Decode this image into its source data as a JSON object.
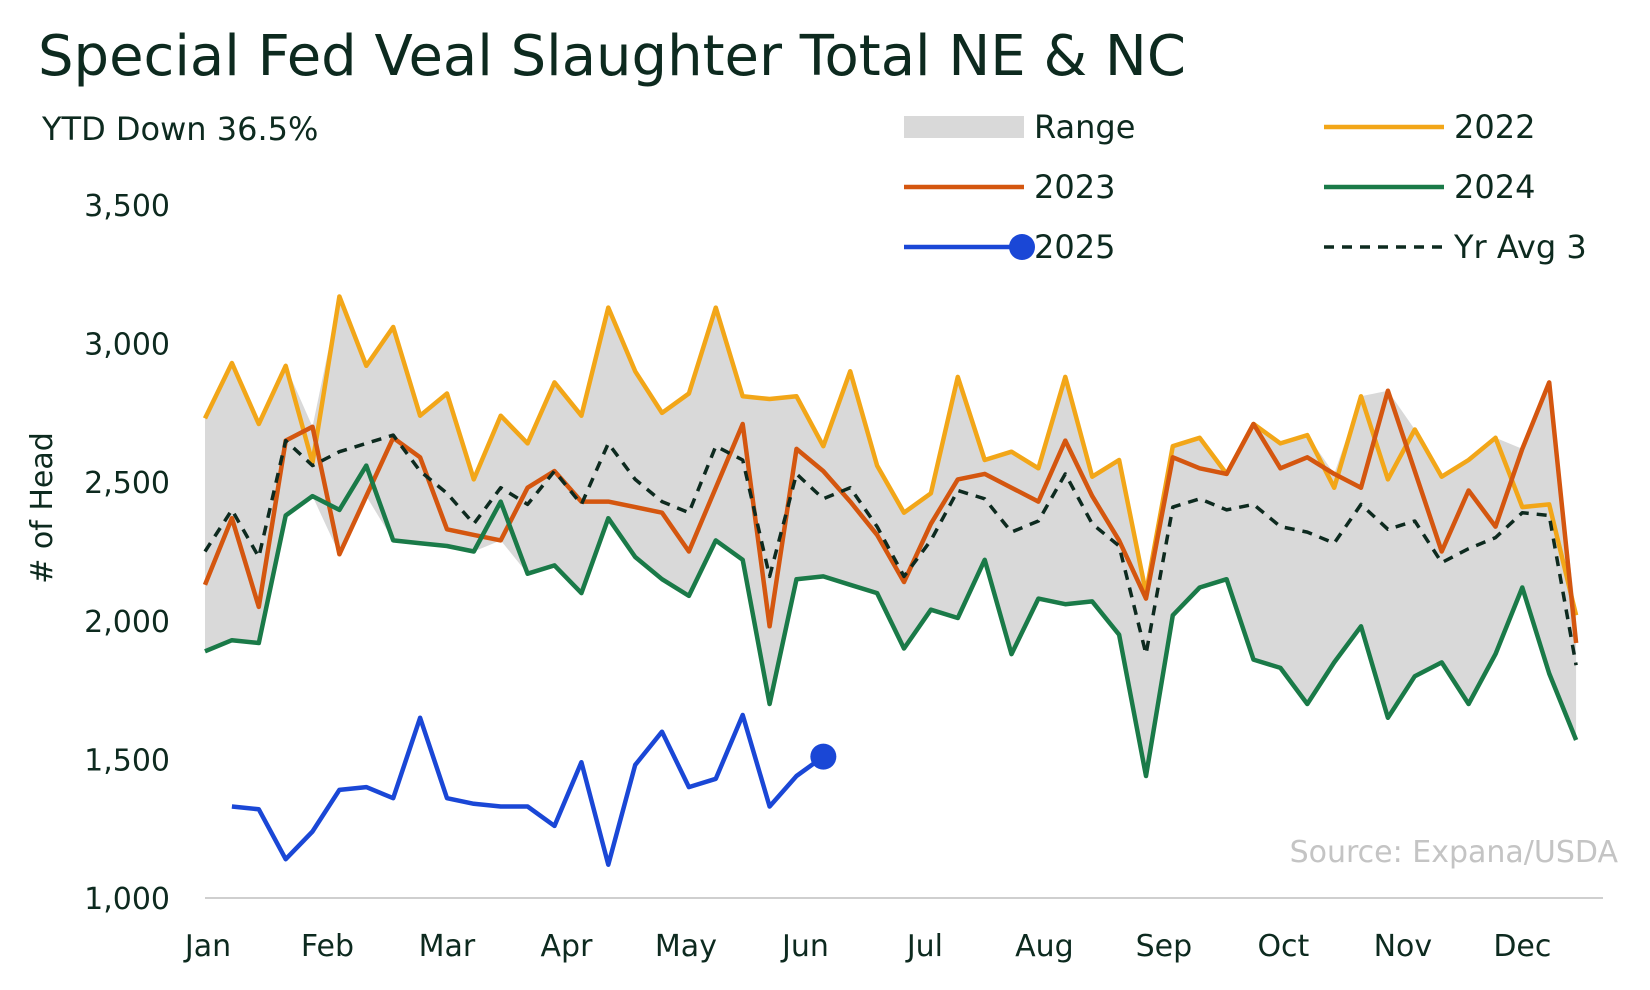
{
  "chart_data": {
    "type": "line",
    "title": "Special Fed Veal Slaughter Total NE & NC",
    "subtitle": "YTD Down 36.5%",
    "ylabel": "# of Head",
    "xlabel": "",
    "source": "Source: Expana/USDA",
    "ylim": [
      1000,
      3500
    ],
    "yticks": [
      1000,
      1500,
      2000,
      2500,
      3000,
      3500
    ],
    "ytick_labels": [
      "1,000",
      "1,500",
      "2,000",
      "2,500",
      "3,000",
      "3,500"
    ],
    "x_week_range": [
      1,
      53
    ],
    "month_labels": [
      "Jan",
      "Feb",
      "Mar",
      "Apr",
      "May",
      "Jun",
      "Jul",
      "Aug",
      "Sep",
      "Oct",
      "Nov",
      "Dec"
    ],
    "grid": false,
    "legend_position": "top-right",
    "colors": {
      "range": "#d9d9d9",
      "2022": "#f2a618",
      "2023": "#d4560f",
      "2024": "#1a7a48",
      "2025": "#1a47d6",
      "avg": "#0d2a1f"
    },
    "legend": [
      {
        "key": "range",
        "label": "Range",
        "style": "band"
      },
      {
        "key": "2022",
        "label": "2022",
        "style": "line"
      },
      {
        "key": "2023",
        "label": "2023",
        "style": "line"
      },
      {
        "key": "2024",
        "label": "2024",
        "style": "line"
      },
      {
        "key": "2025",
        "label": "2025",
        "style": "line-marker"
      },
      {
        "key": "avg",
        "label": "Yr Avg 3",
        "style": "dashed"
      }
    ],
    "series": [
      {
        "name": "2022",
        "key": "2022",
        "start_week": 1,
        "values": [
          2730,
          2930,
          2710,
          2920,
          2570,
          3170,
          2920,
          3060,
          2740,
          2820,
          2510,
          2740,
          2640,
          2860,
          2740,
          3130,
          2900,
          2750,
          2820,
          3130,
          2810,
          2800,
          2810,
          2630,
          2900,
          2560,
          2390,
          2460,
          2880,
          2580,
          2610,
          2550,
          2880,
          2520,
          2580,
          2100,
          2630,
          2660,
          2530,
          2710,
          2640,
          2670,
          2480,
          2810,
          2510,
          2690,
          2520,
          2580,
          2660,
          2410,
          2420,
          2020
        ]
      },
      {
        "name": "2023",
        "key": "2023",
        "start_week": 1,
        "values": [
          2130,
          2370,
          2050,
          2650,
          2700,
          2240,
          2450,
          2660,
          2590,
          2330,
          2310,
          2290,
          2480,
          2540,
          2430,
          2430,
          2410,
          2390,
          2250,
          2480,
          2710,
          1980,
          2620,
          2540,
          2430,
          2310,
          2140,
          2350,
          2510,
          2530,
          2480,
          2430,
          2650,
          2450,
          2290,
          2080,
          2590,
          2550,
          2530,
          2710,
          2550,
          2590,
          2530,
          2480,
          2830,
          2540,
          2250,
          2470,
          2340,
          2620,
          2860,
          1920
        ]
      },
      {
        "name": "2024",
        "key": "2024",
        "start_week": 1,
        "values": [
          1890,
          1930,
          1920,
          2380,
          2450,
          2400,
          2560,
          2290,
          2280,
          2270,
          2250,
          2430,
          2170,
          2200,
          2100,
          2370,
          2230,
          2150,
          2090,
          2290,
          2220,
          1700,
          2150,
          2160,
          2130,
          2100,
          1900,
          2040,
          2010,
          2220,
          1880,
          2080,
          2060,
          2070,
          1950,
          1440,
          2020,
          2120,
          2150,
          1860,
          1830,
          1700,
          1850,
          1980,
          1650,
          1800,
          1850,
          1700,
          1880,
          2120,
          1810,
          1570
        ]
      },
      {
        "name": "Yr Avg 3",
        "key": "avg",
        "start_week": 1,
        "dashed": true,
        "values": [
          2250,
          2400,
          2230,
          2650,
          2560,
          2610,
          2640,
          2670,
          2540,
          2460,
          2350,
          2480,
          2420,
          2540,
          2420,
          2640,
          2510,
          2430,
          2390,
          2630,
          2580,
          2160,
          2530,
          2440,
          2480,
          2340,
          2160,
          2290,
          2470,
          2440,
          2320,
          2360,
          2530,
          2350,
          2270,
          1880,
          2410,
          2440,
          2400,
          2420,
          2340,
          2320,
          2280,
          2420,
          2330,
          2360,
          2210,
          2260,
          2300,
          2390,
          2380,
          1840
        ]
      },
      {
        "name": "2025",
        "key": "2025",
        "start_week": 2,
        "marker_last": true,
        "values": [
          1330,
          1320,
          1140,
          1240,
          1390,
          1400,
          1360,
          1650,
          1360,
          1340,
          1330,
          1330,
          1260,
          1490,
          1120,
          1480,
          1600,
          1400,
          1430,
          1660,
          1330,
          1440,
          1510
        ]
      }
    ]
  }
}
